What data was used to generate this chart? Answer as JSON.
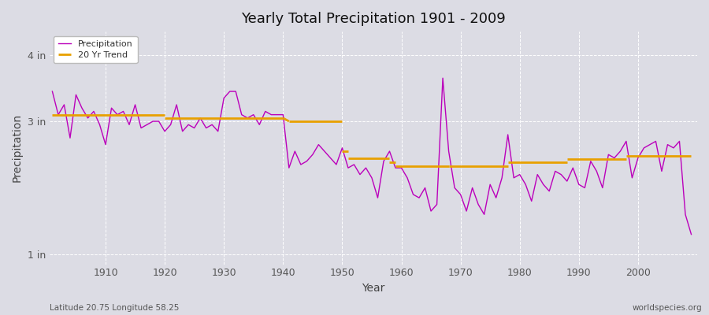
{
  "title": "Yearly Total Precipitation 1901 - 2009",
  "xlabel": "Year",
  "ylabel": "Precipitation",
  "subtitle_left": "Latitude 20.75 Longitude 58.25",
  "subtitle_right": "worldspecies.org",
  "y_ticks_labels": [
    "1 in",
    "3 in",
    "4 in"
  ],
  "y_ticks_values": [
    1.0,
    3.0,
    4.0
  ],
  "ylim": [
    0.85,
    4.35
  ],
  "xlim": [
    1900.5,
    2010
  ],
  "bg_color": "#dcdce4",
  "plot_bg_color": "#dcdce4",
  "line_color_precip": "#bb00bb",
  "line_color_trend": "#e8a000",
  "precip_years": [
    1901,
    1902,
    1903,
    1904,
    1905,
    1906,
    1907,
    1908,
    1909,
    1910,
    1911,
    1912,
    1913,
    1914,
    1915,
    1916,
    1917,
    1918,
    1919,
    1920,
    1921,
    1922,
    1923,
    1924,
    1925,
    1926,
    1927,
    1928,
    1929,
    1930,
    1931,
    1932,
    1933,
    1934,
    1935,
    1936,
    1937,
    1938,
    1939,
    1940,
    1941,
    1942,
    1943,
    1944,
    1945,
    1946,
    1947,
    1948,
    1949,
    1950,
    1951,
    1952,
    1953,
    1954,
    1955,
    1956,
    1957,
    1958,
    1959,
    1960,
    1961,
    1962,
    1963,
    1964,
    1965,
    1966,
    1967,
    1968,
    1969,
    1970,
    1971,
    1972,
    1973,
    1974,
    1975,
    1976,
    1977,
    1978,
    1979,
    1980,
    1981,
    1982,
    1983,
    1984,
    1985,
    1986,
    1987,
    1988,
    1989,
    1990,
    1991,
    1992,
    1993,
    1994,
    1995,
    1996,
    1997,
    1998,
    1999,
    2000,
    2001,
    2002,
    2003,
    2004,
    2005,
    2006,
    2007,
    2008,
    2009
  ],
  "precip_values": [
    3.45,
    3.1,
    3.25,
    2.75,
    3.4,
    3.2,
    3.05,
    3.15,
    2.95,
    2.65,
    3.2,
    3.1,
    3.15,
    2.95,
    3.25,
    2.9,
    2.95,
    3.0,
    3.0,
    2.85,
    2.95,
    3.25,
    2.85,
    2.95,
    2.9,
    3.05,
    2.9,
    2.95,
    2.85,
    3.35,
    3.45,
    3.45,
    3.1,
    3.05,
    3.1,
    2.95,
    3.15,
    3.1,
    3.1,
    3.1,
    2.3,
    2.55,
    2.35,
    2.4,
    2.5,
    2.65,
    2.55,
    2.45,
    2.35,
    2.6,
    2.3,
    2.35,
    2.2,
    2.3,
    2.15,
    1.85,
    2.4,
    2.55,
    2.3,
    2.3,
    2.15,
    1.9,
    1.85,
    2.0,
    1.65,
    1.75,
    3.65,
    2.55,
    2.0,
    1.9,
    1.65,
    2.0,
    1.75,
    1.6,
    2.05,
    1.85,
    2.15,
    2.8,
    2.15,
    2.2,
    2.05,
    1.8,
    2.2,
    2.05,
    1.95,
    2.25,
    2.2,
    2.1,
    2.3,
    2.05,
    2.0,
    2.4,
    2.25,
    2.0,
    2.5,
    2.45,
    2.55,
    2.7,
    2.15,
    2.45,
    2.6,
    2.65,
    2.7,
    2.25,
    2.65,
    2.6,
    2.7,
    1.6,
    1.3
  ],
  "trend_segments": [
    {
      "x": [
        1901,
        1920
      ],
      "y": [
        3.1,
        3.1
      ]
    },
    {
      "x": [
        1920,
        1940
      ],
      "y": [
        3.05,
        3.05
      ]
    },
    {
      "x": [
        1940,
        1941
      ],
      "y": [
        3.05,
        3.0
      ]
    },
    {
      "x": [
        1941,
        1950
      ],
      "y": [
        3.0,
        3.0
      ]
    },
    {
      "x": [
        1950,
        1951
      ],
      "y": [
        2.55,
        2.55
      ]
    },
    {
      "x": [
        1951,
        1958
      ],
      "y": [
        2.45,
        2.45
      ]
    },
    {
      "x": [
        1958,
        1959
      ],
      "y": [
        2.38,
        2.38
      ]
    },
    {
      "x": [
        1959,
        1968
      ],
      "y": [
        2.32,
        2.32
      ]
    },
    {
      "x": [
        1968,
        1978
      ],
      "y": [
        2.32,
        2.32
      ]
    },
    {
      "x": [
        1978,
        1988
      ],
      "y": [
        2.38,
        2.38
      ]
    },
    {
      "x": [
        1988,
        1998
      ],
      "y": [
        2.43,
        2.43
      ]
    },
    {
      "x": [
        1998,
        2009
      ],
      "y": [
        2.48,
        2.48
      ]
    }
  ],
  "xtick_vals": [
    1910,
    1920,
    1930,
    1940,
    1950,
    1960,
    1970,
    1980,
    1990,
    2000
  ]
}
